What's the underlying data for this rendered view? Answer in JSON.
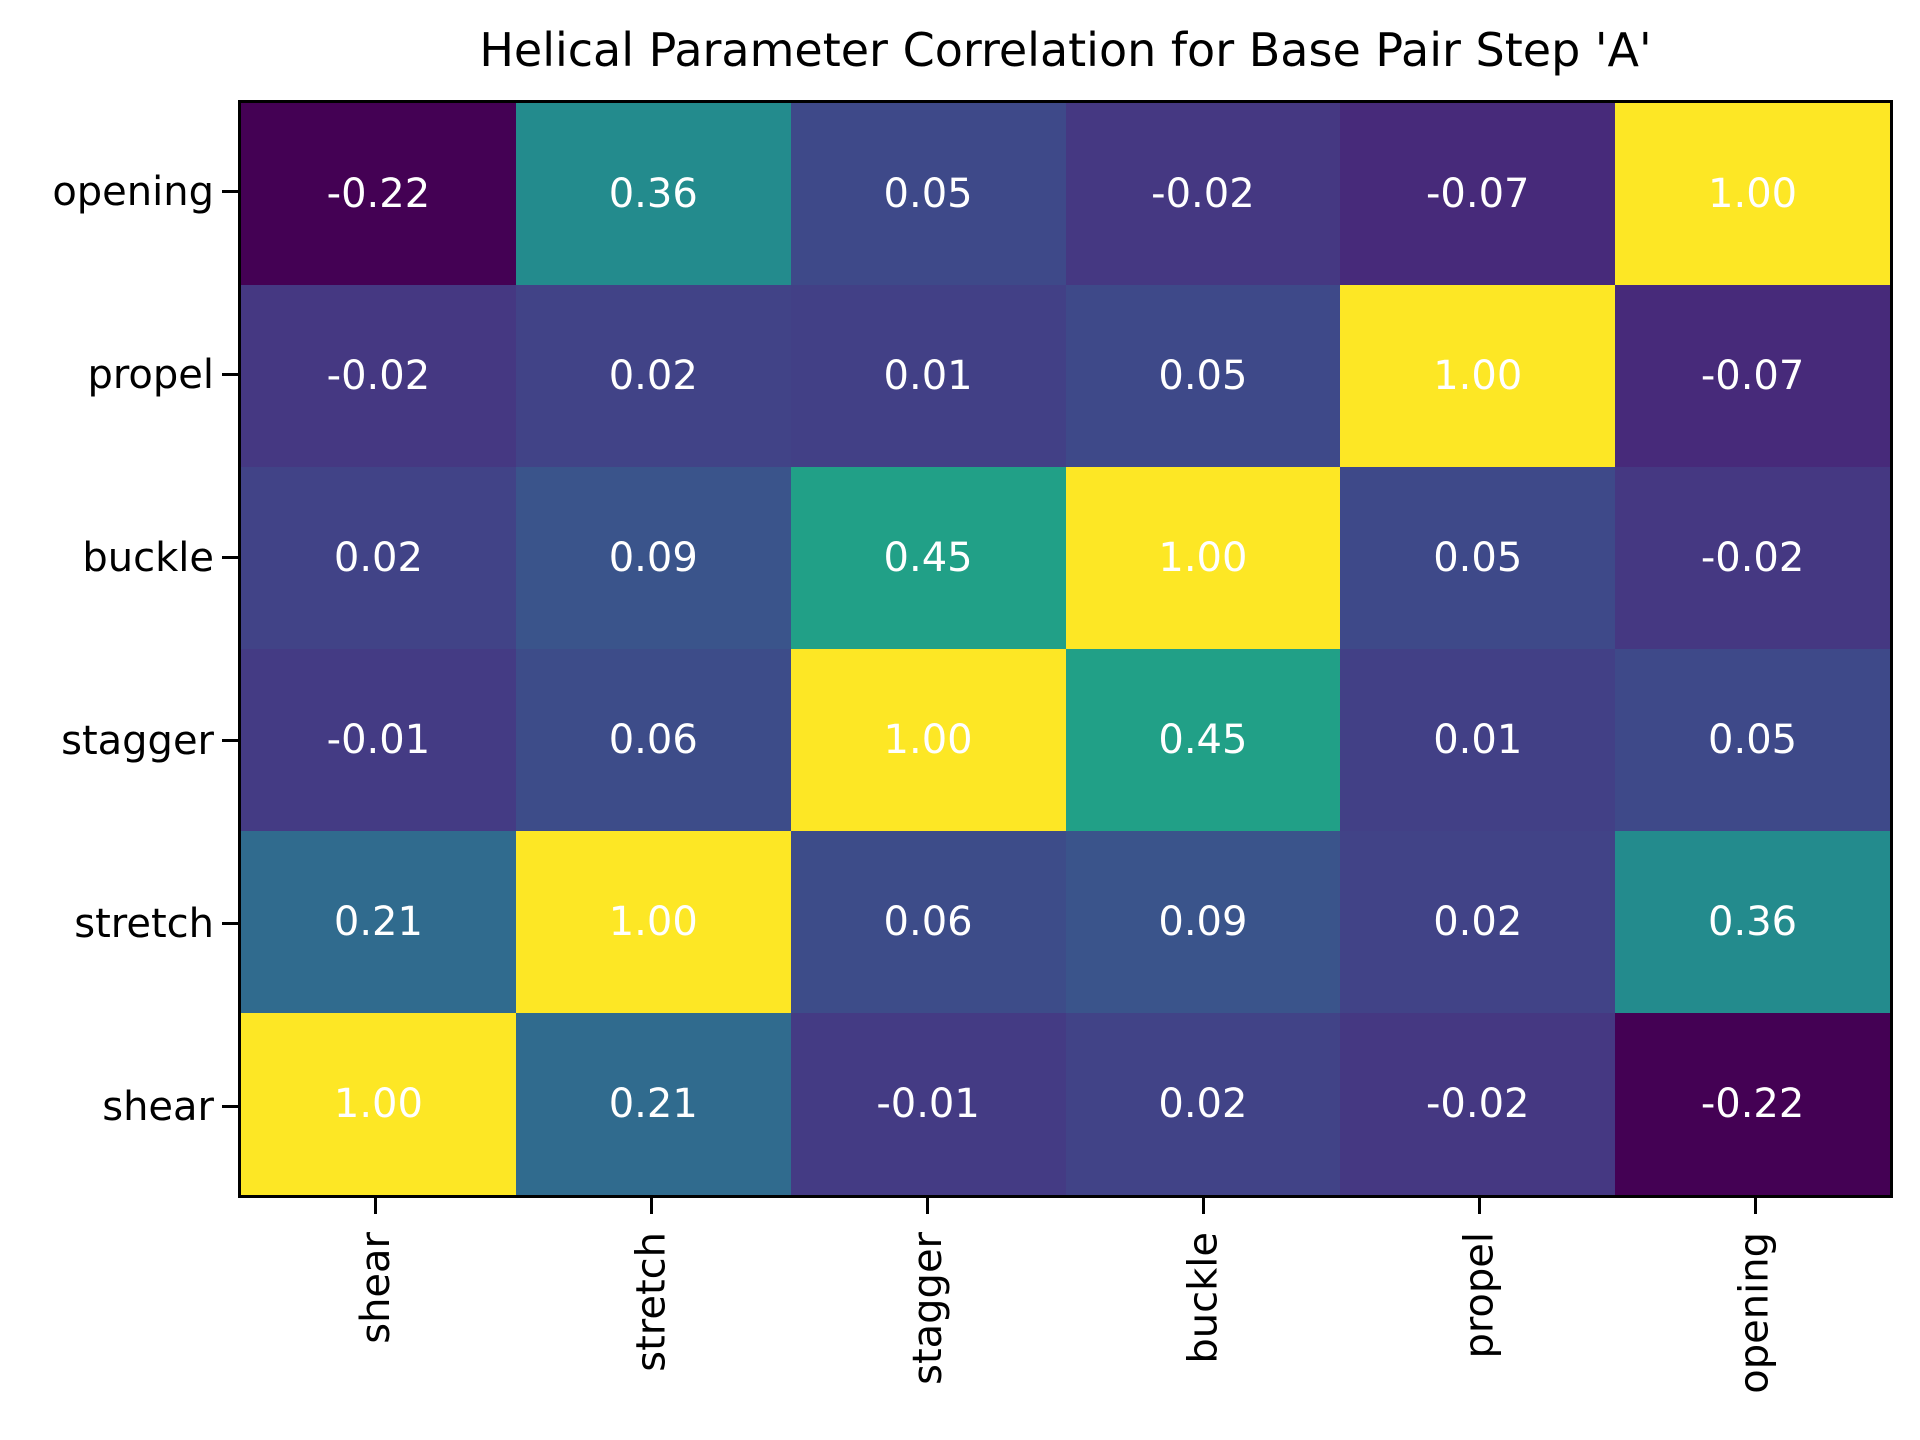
{
  "figure": {
    "background": "#ffffff",
    "spine_color": "#000000",
    "tick_color": "#000000",
    "axis_text_color": "#000000",
    "cell_text_color": "#ffffff"
  },
  "chart_data": {
    "type": "heatmap",
    "title": "Helical Parameter Correlation for Base Pair Step 'A'",
    "colormap": "viridis",
    "vmin": -0.22,
    "vmax": 1.0,
    "legend": "none",
    "grid": false,
    "colorbar": false,
    "x_labels": [
      "shear",
      "stretch",
      "stagger",
      "buckle",
      "propel",
      "opening"
    ],
    "y_labels": [
      "opening",
      "propel",
      "buckle",
      "stagger",
      "stretch",
      "shear"
    ],
    "rows": [
      {
        "label": "opening",
        "values": [
          -0.22,
          0.36,
          0.05,
          -0.02,
          -0.07,
          1.0
        ]
      },
      {
        "label": "propel",
        "values": [
          -0.02,
          0.02,
          0.01,
          0.05,
          1.0,
          -0.07
        ]
      },
      {
        "label": "buckle",
        "values": [
          0.02,
          0.09,
          0.45,
          1.0,
          0.05,
          -0.02
        ]
      },
      {
        "label": "stagger",
        "values": [
          -0.01,
          0.06,
          1.0,
          0.45,
          0.01,
          0.05
        ]
      },
      {
        "label": "stretch",
        "values": [
          0.21,
          1.0,
          0.06,
          0.09,
          0.02,
          0.36
        ]
      },
      {
        "label": "shear",
        "values": [
          1.0,
          0.21,
          -0.01,
          0.02,
          -0.02,
          -0.22
        ]
      }
    ],
    "cell_colors": [
      [
        "#440154",
        "#238b8d",
        "#3e4989",
        "#453882",
        "#472a7a",
        "#fde725"
      ],
      [
        "#453882",
        "#414387",
        "#424086",
        "#3e4989",
        "#fde725",
        "#472a7a"
      ],
      [
        "#414387",
        "#3a548b",
        "#21a087",
        "#fde725",
        "#3e4989",
        "#453882"
      ],
      [
        "#443b84",
        "#3d4c89",
        "#fde725",
        "#21a087",
        "#424086",
        "#3e4989"
      ],
      [
        "#306b8e",
        "#fde725",
        "#3d4c89",
        "#3a548b",
        "#414387",
        "#238b8d"
      ],
      [
        "#fde725",
        "#306b8e",
        "#443b84",
        "#414387",
        "#453882",
        "#440154"
      ]
    ],
    "value_format": "2dp"
  }
}
